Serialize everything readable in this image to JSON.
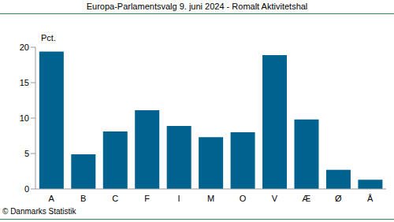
{
  "chart_data": {
    "type": "bar",
    "title": "Europa-Parlamentsvalg 9. juni 2024 - Romalt Aktivitetshal",
    "ylabel": "Pct.",
    "source": "© Danmarks Statistik",
    "categories": [
      "A",
      "B",
      "C",
      "F",
      "I",
      "M",
      "O",
      "V",
      "Æ",
      "Ø",
      "Å"
    ],
    "values": [
      19.4,
      4.9,
      8.1,
      11.1,
      8.9,
      7.3,
      8.0,
      18.9,
      9.8,
      2.7,
      1.3
    ],
    "color": "#00628f",
    "ylim": [
      0,
      20
    ],
    "yticks": [
      0,
      5,
      10,
      15,
      20
    ],
    "grid": false
  }
}
